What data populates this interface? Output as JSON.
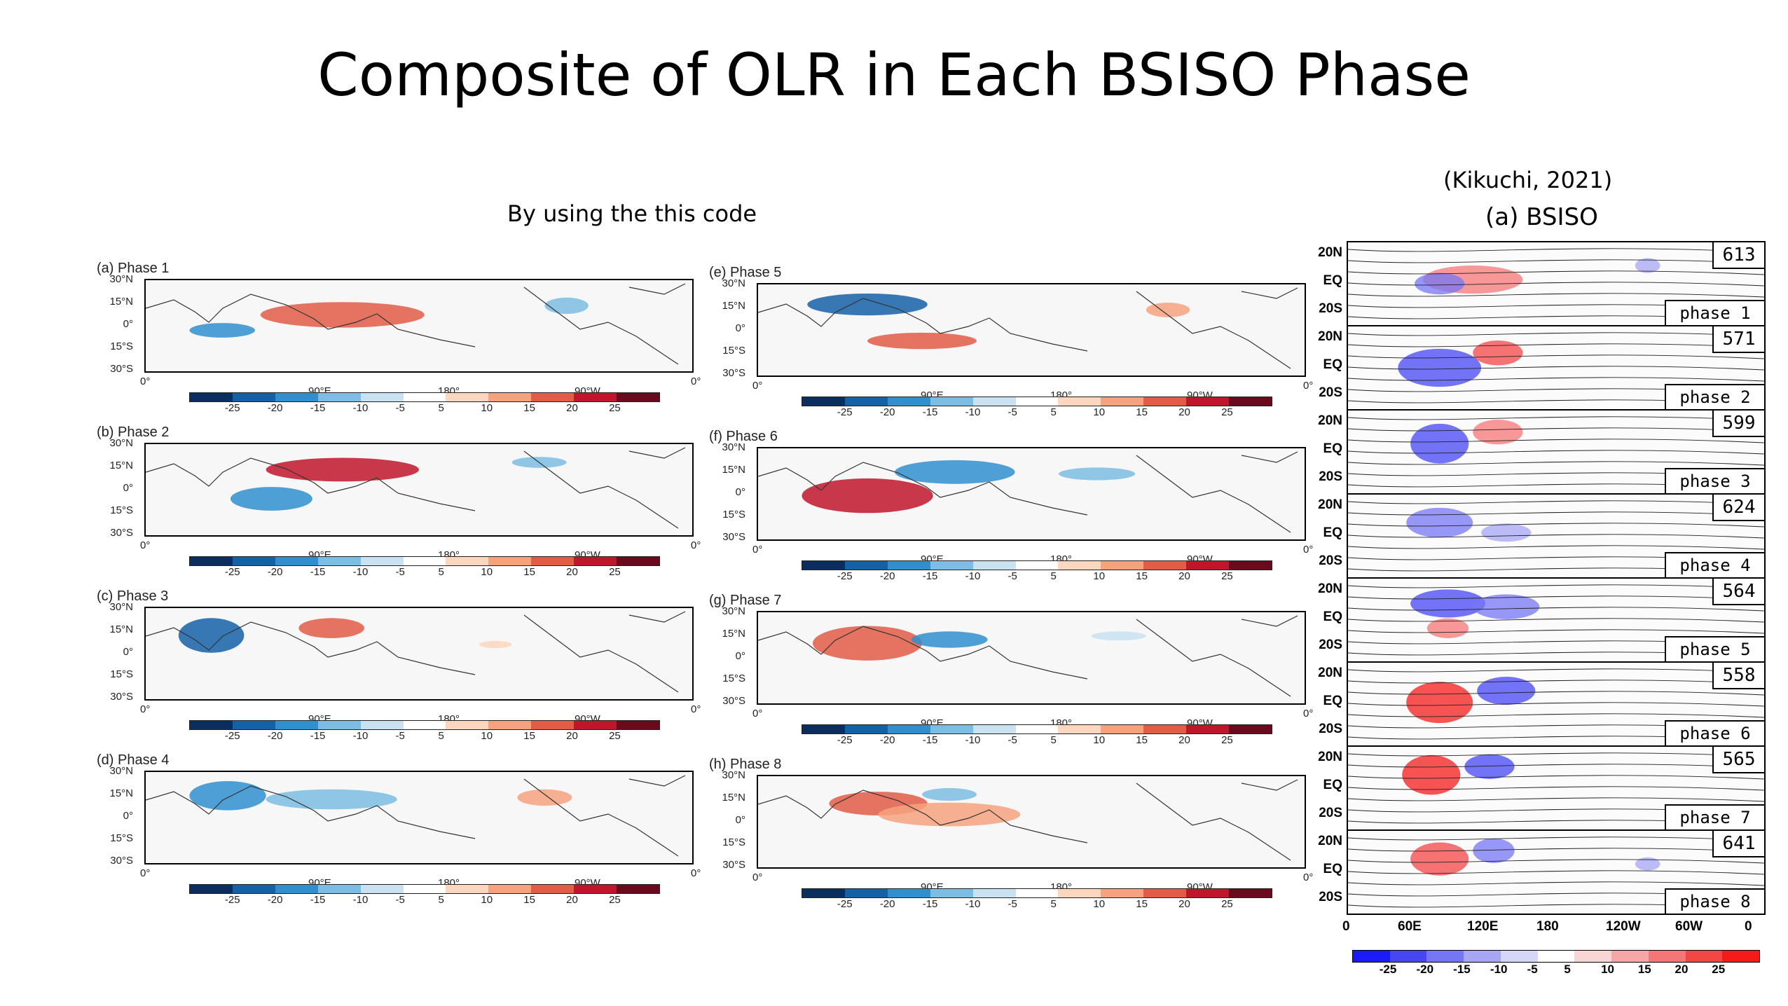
{
  "slide": {
    "title": "Composite of OLR in Each BSISO Phase",
    "left_caption": "By using the this code",
    "right_caption_1": "(Kikuchi, 2021)",
    "right_caption_2": "(a)  BSISO"
  },
  "panels": [
    {
      "label": "(a) Phase 1"
    },
    {
      "label": "(b) Phase 2"
    },
    {
      "label": "(c) Phase 3"
    },
    {
      "label": "(d) Phase 4"
    },
    {
      "label": "(e) Phase 5"
    },
    {
      "label": "(f) Phase 6"
    },
    {
      "label": "(g) Phase 7"
    },
    {
      "label": "(h) Phase 8"
    }
  ],
  "map_axes": {
    "lat_ticks": [
      "30°N",
      "15°N",
      "0°",
      "15°S",
      "30°S"
    ],
    "lon_ticks": [
      "0°",
      "0°"
    ],
    "lon_over_ticks": [
      "90°E",
      "180°",
      "90°W"
    ],
    "colorbar_labels": [
      "-25",
      "-20",
      "-15",
      "-10",
      "-5",
      "5",
      "10",
      "15",
      "20",
      "25"
    ],
    "colorbar_colors": [
      "#0a2f5e",
      "#1561a8",
      "#2f8fcf",
      "#7dbde3",
      "#c8e2f1",
      "#ffffff",
      "#fcd6bf",
      "#f6a27f",
      "#e25c47",
      "#c0162b",
      "#6b0a1d"
    ]
  },
  "kikuchi": {
    "rows": [
      {
        "count": "613",
        "phase": "phase 1"
      },
      {
        "count": "571",
        "phase": "phase 2"
      },
      {
        "count": "599",
        "phase": "phase 3"
      },
      {
        "count": "624",
        "phase": "phase 4"
      },
      {
        "count": "564",
        "phase": "phase 5"
      },
      {
        "count": "558",
        "phase": "phase 6"
      },
      {
        "count": "565",
        "phase": "phase 7"
      },
      {
        "count": "641",
        "phase": "phase 8"
      }
    ],
    "lat_ticks": [
      "20N",
      "EQ",
      "20S"
    ],
    "lon_ticks": [
      "0",
      "60E",
      "120E",
      "180",
      "120W",
      "60W",
      "0"
    ],
    "colorbar_labels": [
      "-25",
      "-20",
      "-15",
      "-10",
      "-5",
      "5",
      "10",
      "15",
      "20",
      "25"
    ],
    "colorbar_colors": [
      "#1b1bf5",
      "#4646f5",
      "#7676f5",
      "#a6a6f5",
      "#d6d6f8",
      "#ffffff",
      "#f8d6d6",
      "#f5a6a6",
      "#f57676",
      "#f54646",
      "#f51b1b"
    ]
  }
}
